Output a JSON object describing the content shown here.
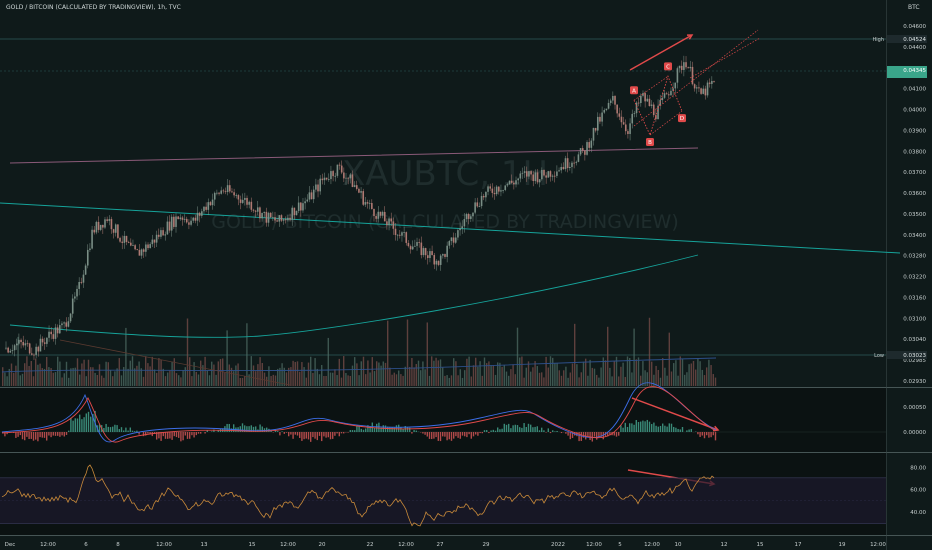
{
  "header": {
    "title": "GOLD / BITCOIN (CALCULATED BY TRADINGVIEW), 1h, TVC",
    "currency": "BTC"
  },
  "watermark": {
    "symbol": "XAUBTC, 1H",
    "description": "GOLD / BITCOIN (CALCULATED BY TRADINGVIEW)"
  },
  "colors": {
    "background": "#0f1a1a",
    "candle_up": "#7a8f86",
    "candle_down": "#b07a73",
    "arrow": "#e04a4a",
    "pattern": "#e04a4a",
    "ma_teal": "#16a39a",
    "ma_purple": "#8a5a78",
    "macd_blue": "#3d6ee8",
    "macd_red": "#e04a4a",
    "rsi": "#c98a3a",
    "high_badge": "#1e2a2d",
    "price_badge": "#3aa58a"
  },
  "price_axis": {
    "ticks": [
      "0.04600",
      "0.04400",
      "0.04200",
      "0.04100",
      "0.04000",
      "0.03900",
      "0.03800",
      "0.03700",
      "0.03600",
      "0.03500",
      "0.03400",
      "0.03280",
      "0.03220",
      "0.03160",
      "0.03100",
      "0.03040",
      "0.02985",
      "0.02930"
    ],
    "high": {
      "label": "High",
      "value": "0.04524"
    },
    "low": {
      "label": "Low",
      "value": "0.03023"
    },
    "last": {
      "value": "0.04345"
    }
  },
  "macd_axis": {
    "ticks": [
      "0.00050",
      "0.00000"
    ]
  },
  "rsi_axis": {
    "ticks": [
      "80.00",
      "60.00",
      "40.00"
    ]
  },
  "time_axis": {
    "ticks": [
      "Dec",
      "12:00",
      "6",
      "8",
      "12:00",
      "13",
      "15",
      "12:00",
      "20",
      "22",
      "12:00",
      "27",
      "29",
      "2022",
      "12:00",
      "5",
      "12:00",
      "10",
      "12",
      "15",
      "17",
      "19",
      "12:00"
    ]
  },
  "pattern_labels": [
    "A",
    "B",
    "C",
    "D"
  ],
  "chart_data": {
    "type": "line",
    "title": "GOLD / BITCOIN (CALCULATED BY TRADINGVIEW), 1h, TVC",
    "ylabel": "BTC",
    "ylim": [
      0.0293,
      0.046
    ],
    "series": [
      {
        "values": [
          0.0312,
          0.0314,
          0.0311,
          0.0318,
          0.0322,
          0.0338,
          0.0366,
          0.0372,
          0.0362,
          0.0355,
          0.036,
          0.0367,
          0.0373,
          0.037,
          0.0379,
          0.0385,
          0.0382,
          0.0378,
          0.0372,
          0.037,
          0.0376,
          0.0381,
          0.039,
          0.0395,
          0.0388,
          0.0378,
          0.0372,
          0.0366,
          0.036,
          0.0356,
          0.0352,
          0.0362,
          0.0374,
          0.0382,
          0.0386,
          0.0388,
          0.0392,
          0.0391,
          0.0394,
          0.0398,
          0.0402,
          0.0416,
          0.0426,
          0.0412,
          0.0428,
          0.042,
          0.0432,
          0.0445,
          0.0428,
          0.0434
        ]
      }
    ],
    "pattern": {
      "points": [
        "A",
        "B",
        "C",
        "D"
      ],
      "values": [
        0.0426,
        0.041,
        0.0437,
        0.0421
      ]
    },
    "indicators": [
      "MACD",
      "RSI"
    ],
    "rsi_levels": [
      70,
      50,
      30
    ],
    "grid": false,
    "legend": "none"
  }
}
